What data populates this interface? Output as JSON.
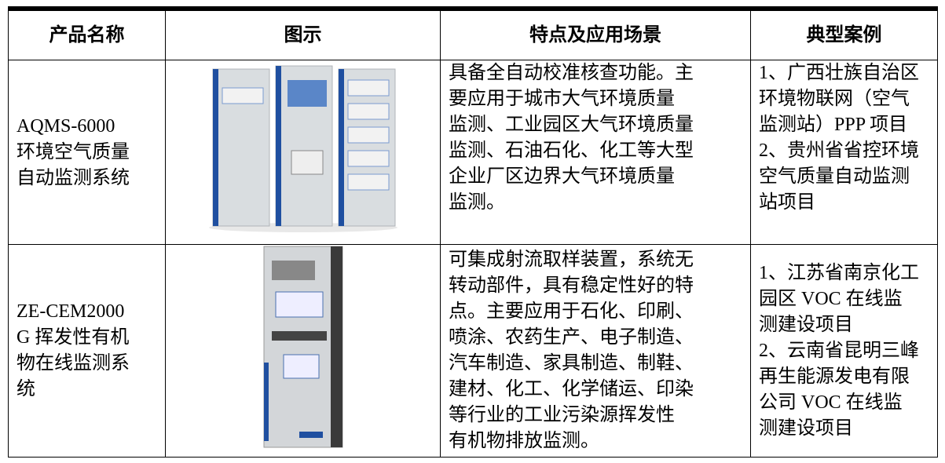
{
  "table": {
    "header": [
      "产品名称",
      "图示",
      "特点及应用场景",
      "典型案例"
    ],
    "rows": [
      {
        "name": [
          "AQMS-6000",
          "环境空气质量",
          "自动监测系统"
        ],
        "features": [
          "具备全自动校准核查功能。主",
          "要应用于城市大气环境质量",
          "监测、工业园区大气环境质量",
          "监测、石油石化、化工等大型",
          "企业厂区边界大气环境质量",
          "监测。"
        ],
        "cases": [
          "1、广西壮族自治区",
          "环境物联网（空气",
          "监测站）PPP 项目",
          "2、贵州省省控环境",
          "空气质量自动监测",
          "站项目"
        ]
      },
      {
        "name": [
          "ZE-CEM2000",
          "G 挥发性有机",
          "物在线监测系",
          "统"
        ],
        "features": [
          "可集成射流取样装置，系统无",
          "转动部件，具有稳定性好的特",
          "点。主要应用于石化、印刷、",
          "喷涂、农药生产、电子制造、",
          "汽车制造、家具制造、制鞋、",
          "建材、化工、化学储运、印染",
          "等行业的工业污染源挥发性",
          "有机物排放监测。"
        ],
        "cases": [
          "1、江苏省南京化工",
          "园区 VOC 在线监",
          "测建设项目",
          "2、云南省昆明三峰",
          "再生能源发电有限",
          "公司 VOC 在线监",
          "测建设项目"
        ]
      }
    ]
  }
}
